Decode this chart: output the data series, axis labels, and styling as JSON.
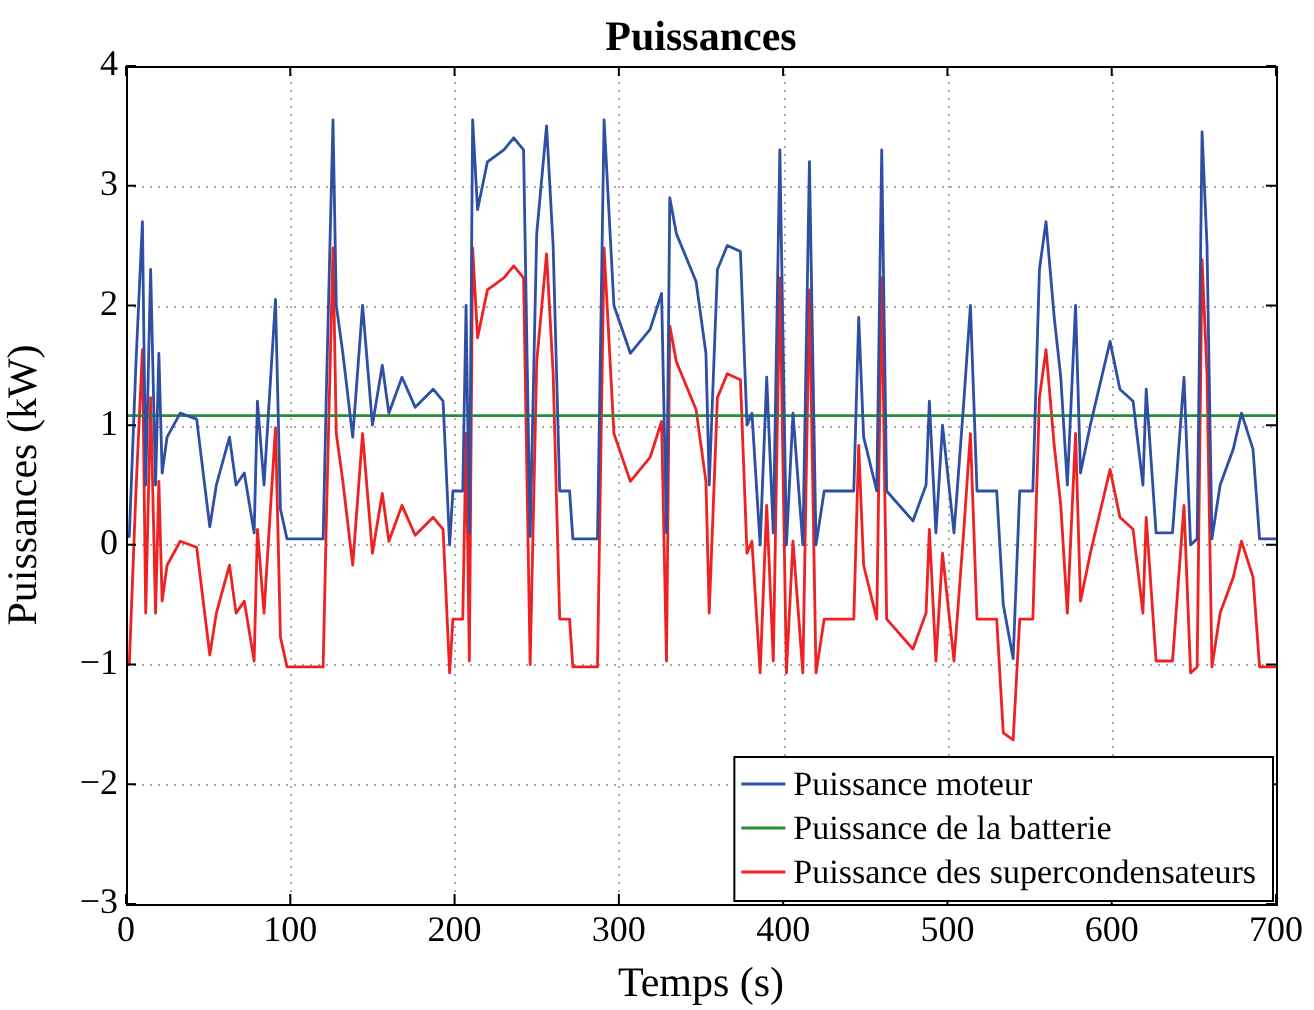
{
  "chart_data": {
    "type": "line",
    "title": "Puissances",
    "xlabel": "Temps (s)",
    "ylabel": "Puissances (kW)",
    "xlim": [
      0,
      700
    ],
    "xticks": [
      0,
      100,
      200,
      300,
      400,
      500,
      600,
      700
    ],
    "ylim": [
      -3,
      4
    ],
    "yticks": [
      {
        "value": -3,
        "label": "−3"
      },
      {
        "value": -2,
        "label": "−2"
      },
      {
        "value": -1,
        "label": "−1"
      },
      0,
      1,
      2,
      3,
      4
    ],
    "grid": true,
    "legend": "bottom right",
    "marker": "none",
    "line_style": "solid",
    "x": [
      0,
      2,
      6,
      10,
      12,
      15,
      18,
      20,
      22,
      25,
      33,
      43,
      51,
      55,
      63,
      67,
      72,
      78,
      80,
      84,
      91,
      94,
      98,
      120,
      122,
      126,
      128,
      132,
      138,
      144,
      150,
      156,
      160,
      168,
      176,
      187,
      193,
      197,
      199,
      205,
      207,
      209,
      211,
      214,
      220,
      230,
      236,
      242,
      246,
      250,
      256,
      260,
      264,
      270,
      272,
      287,
      291,
      297,
      307,
      319,
      326,
      329,
      331,
      335,
      347,
      353,
      355,
      360,
      366,
      374,
      378,
      381,
      386,
      390,
      394,
      398,
      402,
      406,
      412,
      416,
      420,
      425,
      443,
      446,
      449,
      457,
      460,
      463,
      479,
      487,
      489,
      493,
      497,
      504,
      510,
      514,
      518,
      530,
      534,
      540,
      544,
      552,
      556,
      560,
      565,
      569,
      573,
      578,
      581,
      587,
      599,
      605,
      613,
      619,
      621,
      627,
      637,
      644,
      648,
      652,
      655,
      658,
      661,
      666,
      674,
      679,
      686,
      690,
      700
    ],
    "series": [
      {
        "name": "Puissance moteur",
        "color": "#2e4fa3",
        "values": [
          0.07,
          0.07,
          1.5,
          2.7,
          0.5,
          2.3,
          0.5,
          1.6,
          0.6,
          0.9,
          1.1,
          1.05,
          0.15,
          0.5,
          0.9,
          0.5,
          0.6,
          0.1,
          1.2,
          0.5,
          2.05,
          0.3,
          0.05,
          0.05,
          1.3,
          3.55,
          2.0,
          1.6,
          0.9,
          2.0,
          1.0,
          1.5,
          1.1,
          1.4,
          1.15,
          1.3,
          1.2,
          0.0,
          0.45,
          0.45,
          2.0,
          0.1,
          3.55,
          2.8,
          3.2,
          3.3,
          3.4,
          3.3,
          0.07,
          2.6,
          3.5,
          2.5,
          0.45,
          0.45,
          0.05,
          0.05,
          3.55,
          2.0,
          1.6,
          1.8,
          2.1,
          0.1,
          2.9,
          2.6,
          2.2,
          1.6,
          0.5,
          2.3,
          2.5,
          2.45,
          1.0,
          1.1,
          0.0,
          1.4,
          0.1,
          3.3,
          0.0,
          1.1,
          0.0,
          3.2,
          0.0,
          0.45,
          0.45,
          1.9,
          0.9,
          0.45,
          3.3,
          0.45,
          0.2,
          0.5,
          1.2,
          0.1,
          1.0,
          0.1,
          1.2,
          2.0,
          0.45,
          0.45,
          -0.5,
          -0.95,
          0.45,
          0.45,
          2.3,
          2.7,
          1.9,
          1.4,
          0.5,
          2.0,
          0.6,
          1.0,
          1.7,
          1.3,
          1.2,
          0.5,
          1.3,
          0.1,
          0.1,
          1.4,
          0.0,
          0.05,
          3.45,
          2.5,
          0.05,
          0.5,
          0.8,
          1.1,
          0.8,
          0.05,
          0.05
        ]
      },
      {
        "name": "Puissance de la batterie",
        "color": "#2a8a3a",
        "x": [
          0,
          700
        ],
        "values": [
          1.08,
          1.08
        ]
      },
      {
        "name": "Puissance des supercondensateurs",
        "color": "#ee2222",
        "values": [
          -1.0,
          -1.0,
          0.43,
          1.63,
          -0.57,
          1.23,
          -0.57,
          0.53,
          -0.47,
          -0.17,
          0.03,
          -0.02,
          -0.92,
          -0.57,
          -0.17,
          -0.57,
          -0.47,
          -0.97,
          0.13,
          -0.57,
          0.98,
          -0.77,
          -1.02,
          -1.02,
          0.23,
          2.48,
          0.93,
          0.53,
          -0.17,
          0.93,
          -0.07,
          0.43,
          0.03,
          0.33,
          0.08,
          0.23,
          0.13,
          -1.07,
          -0.62,
          -0.62,
          0.93,
          -0.97,
          2.48,
          1.73,
          2.13,
          2.23,
          2.33,
          2.23,
          -1.0,
          1.53,
          2.43,
          1.43,
          -0.62,
          -0.62,
          -1.02,
          -1.02,
          2.48,
          0.93,
          0.53,
          0.73,
          1.03,
          -0.97,
          1.83,
          1.53,
          1.13,
          0.53,
          -0.57,
          1.23,
          1.43,
          1.38,
          -0.07,
          0.03,
          -1.07,
          0.33,
          -0.97,
          2.23,
          -1.07,
          0.03,
          -1.07,
          2.13,
          -1.07,
          -0.62,
          -0.62,
          0.83,
          -0.17,
          -0.62,
          2.23,
          -0.62,
          -0.87,
          -0.57,
          0.13,
          -0.97,
          -0.07,
          -0.97,
          0.13,
          0.93,
          -0.62,
          -0.62,
          -1.57,
          -1.63,
          -0.62,
          -0.62,
          1.23,
          1.63,
          0.83,
          0.33,
          -0.57,
          0.93,
          -0.47,
          -0.07,
          0.63,
          0.23,
          0.13,
          -0.57,
          0.23,
          -0.97,
          -0.97,
          0.33,
          -1.07,
          -1.02,
          2.38,
          1.43,
          -1.02,
          -0.57,
          -0.27,
          0.03,
          -0.27,
          -1.02,
          -1.02
        ]
      }
    ]
  }
}
